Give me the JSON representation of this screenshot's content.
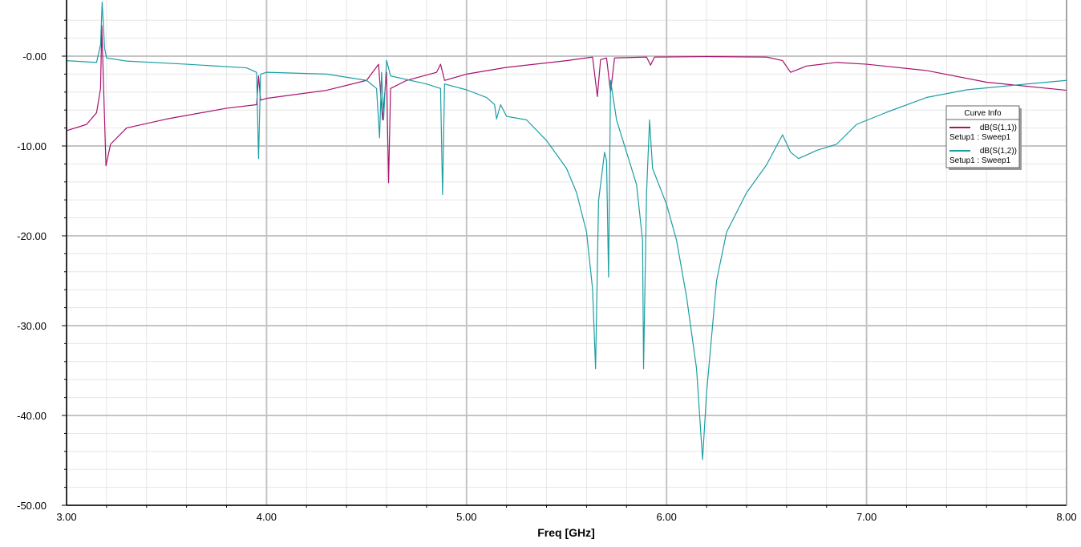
{
  "chart_data": {
    "type": "line",
    "xlabel": "Freq [GHz]",
    "legend_title": "Curve Info",
    "legend": "upper-right",
    "grid": true,
    "xlim": [
      3,
      8
    ],
    "ylim": [
      -50,
      6.25
    ],
    "xticks": [
      {
        "value": 3,
        "label": "3.00"
      },
      {
        "value": 4,
        "label": "4.00"
      },
      {
        "value": 5,
        "label": "5.00"
      },
      {
        "value": 6,
        "label": "6.00"
      },
      {
        "value": 7,
        "label": "7.00"
      },
      {
        "value": 8,
        "label": "8.00"
      }
    ],
    "yticks": [
      {
        "value": -50,
        "label": "-50.00"
      },
      {
        "value": -40,
        "label": "-40.00"
      },
      {
        "value": -30,
        "label": "-30.00"
      },
      {
        "value": -20,
        "label": "-20.00"
      },
      {
        "value": -10,
        "label": "-10.00"
      },
      {
        "value": 0,
        "label": "-0.00"
      }
    ],
    "xminorticks": [
      3.2,
      3.4,
      3.6,
      3.8,
      4.2,
      4.4,
      4.6,
      4.8,
      5.2,
      5.4,
      5.6,
      5.8,
      6.2,
      6.4,
      6.6,
      6.8,
      7.2,
      7.4,
      7.6,
      7.8
    ],
    "yminorticks": [
      -48,
      -46,
      -44,
      -42,
      -38,
      -36,
      -34,
      -32,
      -28,
      -26,
      -24,
      -22,
      -18,
      -16,
      -14,
      -12,
      -8,
      -6,
      -4,
      -2,
      2,
      4
    ],
    "series": [
      {
        "name": "dB(S(1,1))",
        "setup": "Setup1 : Sweep1",
        "color": "#a8126f",
        "x": [
          3.0,
          3.1,
          3.15,
          3.17,
          3.176,
          3.19,
          3.197,
          3.22,
          3.3,
          3.5,
          3.8,
          3.95,
          3.96,
          3.97,
          4.0,
          4.3,
          4.5,
          4.56,
          4.58,
          4.6,
          4.61,
          4.62,
          4.7,
          4.85,
          4.87,
          4.89,
          5.0,
          5.2,
          5.5,
          5.63,
          5.654,
          5.67,
          5.7,
          5.72,
          5.74,
          5.9,
          5.92,
          5.94,
          6.2,
          6.5,
          6.58,
          6.62,
          6.7,
          6.85,
          7.0,
          7.3,
          7.6,
          8.0
        ],
        "values": [
          -8.3,
          -7.6,
          -6.3,
          -3.6,
          3.4,
          -7.0,
          -12.2,
          -9.8,
          -8.0,
          -7.0,
          -5.8,
          -5.4,
          -2.2,
          -4.9,
          -4.7,
          -3.8,
          -2.7,
          -0.9,
          -7.1,
          -1.8,
          -14.1,
          -3.6,
          -2.7,
          -1.8,
          -0.9,
          -2.7,
          -2.0,
          -1.25,
          -0.5,
          -0.1,
          -4.5,
          -0.4,
          -0.2,
          -4.0,
          -0.2,
          -0.1,
          -1.0,
          -0.1,
          -0.05,
          -0.1,
          -0.5,
          -1.8,
          -1.1,
          -0.7,
          -0.9,
          -1.6,
          -2.9,
          -3.8
        ]
      },
      {
        "name": "dB(S(1,2))",
        "setup": "Setup1 : Sweep1",
        "color": "#1c9ea3",
        "x": [
          3.0,
          3.15,
          3.17,
          3.178,
          3.19,
          3.2,
          3.3,
          3.6,
          3.9,
          3.95,
          3.96,
          3.97,
          4.0,
          4.3,
          4.5,
          4.55,
          4.565,
          4.575,
          4.585,
          4.6,
          4.62,
          4.8,
          4.87,
          4.88,
          4.89,
          5.0,
          5.1,
          5.14,
          5.15,
          5.17,
          5.2,
          5.3,
          5.4,
          5.5,
          5.55,
          5.6,
          5.63,
          5.645,
          5.66,
          5.69,
          5.7,
          5.71,
          5.72,
          5.75,
          5.8,
          5.85,
          5.88,
          5.885,
          5.9,
          5.915,
          5.93,
          6.0,
          6.05,
          6.1,
          6.15,
          6.18,
          6.2,
          6.25,
          6.3,
          6.4,
          6.5,
          6.58,
          6.62,
          6.66,
          6.75,
          6.85,
          6.95,
          7.1,
          7.3,
          7.5,
          7.8,
          8.0
        ],
        "values": [
          -0.5,
          -0.7,
          1.3,
          6.0,
          0.9,
          -0.2,
          -0.55,
          -0.9,
          -1.3,
          -1.8,
          -11.4,
          -2.0,
          -1.8,
          -2.0,
          -2.7,
          -3.6,
          -9.1,
          -1.8,
          -7.1,
          -0.45,
          -2.2,
          -3.1,
          -3.6,
          -15.4,
          -3.1,
          -3.75,
          -4.6,
          -5.4,
          -7.0,
          -5.4,
          -6.7,
          -7.1,
          -9.4,
          -12.5,
          -15.2,
          -19.6,
          -25.9,
          -34.8,
          -16.1,
          -10.7,
          -11.6,
          -24.6,
          -2.7,
          -7.1,
          -10.7,
          -14.3,
          -20.5,
          -34.8,
          -15.2,
          -7.1,
          -12.5,
          -16.5,
          -20.5,
          -26.8,
          -34.8,
          -44.9,
          -37.5,
          -25.0,
          -19.6,
          -15.2,
          -12.1,
          -8.75,
          -10.7,
          -11.4,
          -10.5,
          -9.8,
          -7.6,
          -6.25,
          -4.6,
          -3.75,
          -3.1,
          -2.7
        ]
      }
    ]
  }
}
